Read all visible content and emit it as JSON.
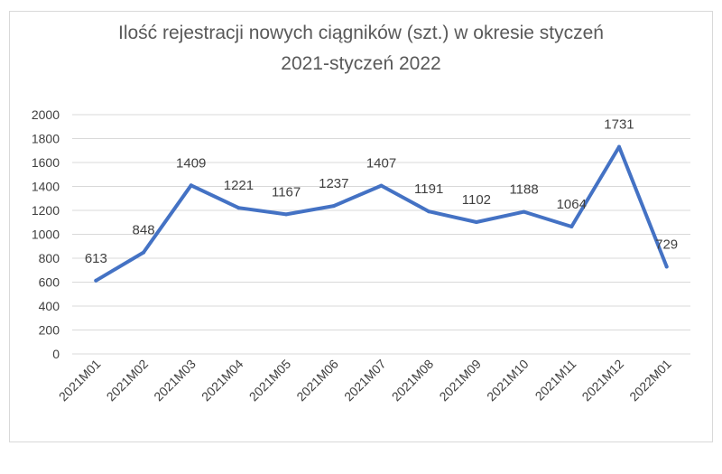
{
  "chart_data": {
    "type": "line",
    "title_line1": "Ilość rejestracji nowych ciągników (szt.) w okresie styczeń",
    "title_line2": "2021-styczeń 2022",
    "categories": [
      "2021M01",
      "2021M02",
      "2021M03",
      "2021M04",
      "2021M05",
      "2021M06",
      "2021M07",
      "2021M08",
      "2021M09",
      "2021M10",
      "2021M11",
      "2021M12",
      "2022M01"
    ],
    "series": [
      {
        "values": [
          613,
          848,
          1409,
          1221,
          1167,
          1237,
          1407,
          1191,
          1102,
          1188,
          1064,
          1731,
          729
        ]
      }
    ],
    "y_ticks": [
      0,
      200,
      400,
      600,
      800,
      1000,
      1200,
      1400,
      1600,
      1800,
      2000
    ],
    "ylim": [
      0,
      2000
    ],
    "grid": true,
    "legend": "none",
    "data_labels": true,
    "line_color": "#4472c4",
    "grid_color": "#d9d9d9",
    "text_color": "#404040"
  }
}
